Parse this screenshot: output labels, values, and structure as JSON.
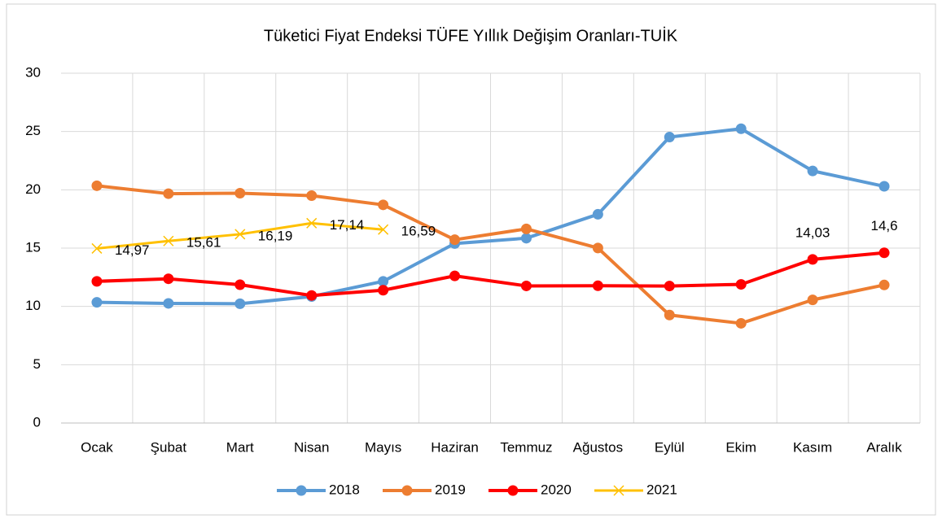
{
  "chart_data": {
    "type": "line",
    "title": "Tüketici Fiyat Endeksi TÜFE Yıllık Değişim Oranları-TUİK",
    "categories": [
      "Ocak",
      "Şubat",
      "Mart",
      "Nisan",
      "Mayıs",
      "Haziran",
      "Temmuz",
      "Ağustos",
      "Eylül",
      "Ekim",
      "Kasım",
      "Aralık"
    ],
    "series": [
      {
        "name": "2018",
        "color": "#5b9bd5",
        "marker": "circle",
        "values": [
          10.35,
          10.26,
          10.23,
          10.85,
          12.15,
          15.39,
          15.85,
          17.9,
          24.52,
          25.24,
          21.62,
          20.3
        ]
      },
      {
        "name": "2019",
        "color": "#ed7d31",
        "marker": "circle",
        "values": [
          20.35,
          19.67,
          19.71,
          19.5,
          18.71,
          15.72,
          16.65,
          15.01,
          9.26,
          8.55,
          10.56,
          11.84
        ]
      },
      {
        "name": "2020",
        "color": "#ff0000",
        "marker": "circle",
        "values": [
          12.15,
          12.37,
          11.86,
          10.94,
          11.39,
          12.62,
          11.76,
          11.77,
          11.75,
          11.89,
          14.03,
          14.6
        ],
        "value_labels": [
          null,
          null,
          null,
          null,
          null,
          null,
          null,
          null,
          null,
          null,
          "14,03",
          "14,6"
        ]
      },
      {
        "name": "2021",
        "color": "#ffc000",
        "marker": "x",
        "values": [
          14.97,
          15.61,
          16.19,
          17.14,
          16.59,
          null,
          null,
          null,
          null,
          null,
          null,
          null
        ],
        "value_labels": [
          "14,97",
          "15,61",
          "16,19",
          "17,14",
          "16,59",
          null,
          null,
          null,
          null,
          null,
          null,
          null
        ]
      }
    ],
    "ylim": [
      0,
      30
    ],
    "yticks": [
      0,
      5,
      10,
      15,
      20,
      25,
      30
    ],
    "grid": true,
    "legend": "bottom"
  }
}
